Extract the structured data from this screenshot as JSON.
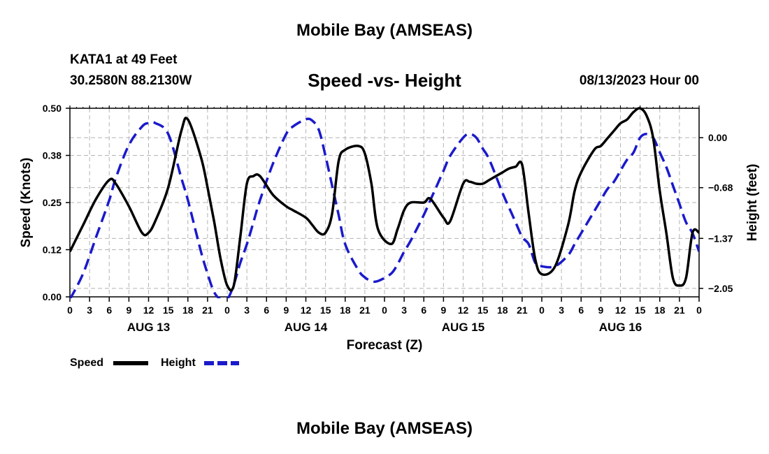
{
  "page": {
    "title": "Mobile Bay (AMSEAS)",
    "station": "KATA1 at 49 Feet",
    "coords": "30.2580N  88.2130W",
    "datetime": "08/13/2023 Hour 00",
    "next_title": "Mobile Bay (AMSEAS)"
  },
  "colors": {
    "speed": "#000000",
    "height": "#1a1acc",
    "grid": "#b4b4b4"
  },
  "chart_data": {
    "type": "line",
    "title": "Speed -vs- Height",
    "xlabel": "Forecast (Z)",
    "ylabel": "Speed (Knots)",
    "y2label": "Height (feet)",
    "xlim": [
      0,
      96
    ],
    "ylim": [
      0,
      0.5
    ],
    "y2lim": [
      -2.165,
      0.4
    ],
    "x_ticks": [
      0,
      3,
      6,
      9,
      12,
      15,
      18,
      21,
      24,
      27,
      30,
      33,
      36,
      39,
      42,
      45,
      48,
      51,
      54,
      57,
      60,
      63,
      66,
      69,
      72,
      75,
      78,
      81,
      84,
      87,
      90,
      93,
      96
    ],
    "x_tick_labels": [
      "0",
      "3",
      "6",
      "9",
      "12",
      "15",
      "18",
      "21",
      "0",
      "3",
      "6",
      "9",
      "12",
      "15",
      "18",
      "21",
      "0",
      "3",
      "6",
      "9",
      "12",
      "15",
      "18",
      "21",
      "0",
      "3",
      "6",
      "9",
      "12",
      "15",
      "18",
      "21",
      "0"
    ],
    "date_labels": [
      {
        "x": 12,
        "label": "AUG 13"
      },
      {
        "x": 36,
        "label": "AUG 14"
      },
      {
        "x": 60,
        "label": "AUG 15"
      },
      {
        "x": 84,
        "label": "AUG 16"
      }
    ],
    "y_ticks": [
      0.0,
      0.125,
      0.25,
      0.375,
      0.5
    ],
    "y_tick_labels": [
      "0.00",
      "0.12",
      "0.25",
      "0.38",
      "0.50"
    ],
    "y2_ticks": [
      0.0,
      -0.68,
      -1.37,
      -2.05
    ],
    "y2_tick_labels": [
      "0.00",
      "−0.68",
      "−1.37",
      "−2.05"
    ],
    "grid": true,
    "series": [
      {
        "name": "Speed",
        "axis": "left",
        "style": "solid",
        "x": [
          0,
          2,
          4,
          6,
          7,
          9,
          11,
          12,
          13,
          15,
          17,
          18,
          20,
          21,
          22,
          23,
          24,
          25,
          26,
          27,
          28,
          29,
          31,
          33,
          34,
          36,
          37,
          38,
          39,
          40,
          41,
          42,
          44,
          45,
          46,
          47,
          49,
          50,
          51,
          52,
          54,
          55,
          57,
          58,
          60,
          61,
          62,
          63,
          64,
          66,
          67,
          68,
          69,
          70,
          71,
          72,
          74,
          76,
          77,
          78,
          80,
          81,
          82,
          83,
          84,
          85,
          86,
          87,
          88,
          89,
          90,
          91,
          92,
          93,
          94,
          95,
          96
        ],
        "values": [
          0.12,
          0.19,
          0.26,
          0.31,
          0.3,
          0.24,
          0.17,
          0.17,
          0.2,
          0.29,
          0.44,
          0.47,
          0.37,
          0.29,
          0.2,
          0.1,
          0.03,
          0.03,
          0.16,
          0.3,
          0.32,
          0.32,
          0.27,
          0.24,
          0.23,
          0.21,
          0.19,
          0.17,
          0.17,
          0.22,
          0.36,
          0.39,
          0.4,
          0.38,
          0.3,
          0.18,
          0.14,
          0.18,
          0.23,
          0.25,
          0.25,
          0.26,
          0.21,
          0.2,
          0.3,
          0.305,
          0.3,
          0.3,
          0.31,
          0.33,
          0.34,
          0.345,
          0.35,
          0.22,
          0.1,
          0.06,
          0.08,
          0.19,
          0.28,
          0.33,
          0.39,
          0.4,
          0.42,
          0.44,
          0.46,
          0.47,
          0.49,
          0.5,
          0.48,
          0.42,
          0.28,
          0.17,
          0.05,
          0.03,
          0.05,
          0.17,
          0.17
        ]
      },
      {
        "name": "Height",
        "axis": "right",
        "style": "dashed",
        "x": [
          0,
          2,
          4,
          6,
          7,
          9,
          11,
          12,
          13,
          15,
          17,
          18,
          20,
          21,
          22,
          23,
          24,
          25,
          26,
          27,
          28,
          29,
          31,
          33,
          34,
          36,
          37,
          38,
          39,
          40,
          41,
          42,
          44,
          45,
          46,
          47,
          49,
          50,
          51,
          52,
          54,
          55,
          57,
          58,
          60,
          61,
          62,
          63,
          64,
          66,
          67,
          68,
          69,
          70,
          71,
          72,
          74,
          76,
          77,
          78,
          80,
          81,
          82,
          83,
          84,
          85,
          86,
          87,
          88,
          89,
          90,
          91,
          92,
          93,
          94,
          95,
          96
        ],
        "values": [
          -2.2,
          -1.85,
          -1.35,
          -0.85,
          -0.55,
          -0.1,
          0.15,
          0.2,
          0.2,
          0.05,
          -0.55,
          -0.85,
          -1.55,
          -1.85,
          -2.1,
          -2.2,
          -2.2,
          -2.0,
          -1.7,
          -1.45,
          -1.15,
          -0.85,
          -0.35,
          0.05,
          0.15,
          0.25,
          0.23,
          0.1,
          -0.25,
          -0.65,
          -1.05,
          -1.45,
          -1.8,
          -1.9,
          -1.95,
          -1.95,
          -1.85,
          -1.72,
          -1.55,
          -1.4,
          -1.05,
          -0.85,
          -0.45,
          -0.25,
          0.0,
          0.05,
          0.0,
          -0.15,
          -0.3,
          -0.75,
          -0.95,
          -1.15,
          -1.35,
          -1.45,
          -1.7,
          -1.75,
          -1.75,
          -1.6,
          -1.45,
          -1.3,
          -1.0,
          -0.85,
          -0.7,
          -0.6,
          -0.45,
          -0.3,
          -0.2,
          0.0,
          0.05,
          0.0,
          -0.2,
          -0.4,
          -0.65,
          -0.9,
          -1.15,
          -1.3,
          -1.55
        ]
      }
    ],
    "legend": [
      {
        "name": "Speed",
        "style": "solid"
      },
      {
        "name": "Height",
        "style": "dashed"
      }
    ],
    "legend_position": "bottom-left"
  }
}
